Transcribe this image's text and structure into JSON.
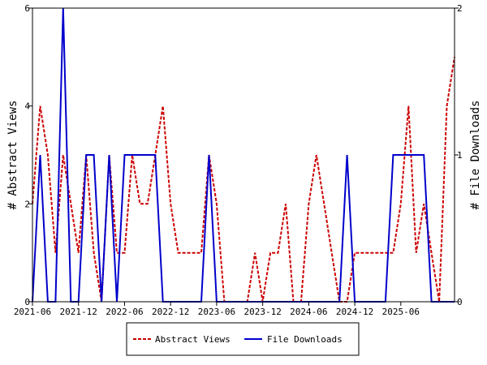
{
  "chart_data": {
    "type": "line",
    "ylabel_left": "# Abstract Views",
    "ylabel_right": "# File Downloads",
    "x_tick_labels": [
      "2021-06",
      "2021-12",
      "2022-06",
      "2022-12",
      "2023-06",
      "2023-12",
      "2024-06",
      "2024-12",
      "2025-06"
    ],
    "ylim_left": [
      0,
      6
    ],
    "ylim_right": [
      0,
      2
    ],
    "y_ticks_left": [
      "0",
      "2",
      "4",
      "6"
    ],
    "y_ticks_right": [
      "0",
      "1",
      "2"
    ],
    "grid": false,
    "legend_position": "bottom",
    "series": [
      {
        "name": "Abstract Views",
        "axis": "left",
        "color": "#cc0000",
        "style": "dashed",
        "points": [
          [
            "2021-06",
            2
          ],
          [
            "2021-07",
            4
          ],
          [
            "2021-08",
            3
          ],
          [
            "2021-09",
            1
          ],
          [
            "2021-10",
            3
          ],
          [
            "2021-11",
            2
          ],
          [
            "2021-12",
            1
          ],
          [
            "2022-01",
            3
          ],
          [
            "2022-02",
            1
          ],
          [
            "2022-03",
            0
          ],
          [
            "2022-04",
            3
          ],
          [
            "2022-05",
            1
          ],
          [
            "2022-06",
            1
          ],
          [
            "2022-07",
            3
          ],
          [
            "2022-08",
            2
          ],
          [
            "2022-09",
            2
          ],
          [
            "2022-10",
            3
          ],
          [
            "2022-11",
            4
          ],
          [
            "2022-12",
            2
          ],
          [
            "2023-01",
            1
          ],
          [
            "2023-02",
            1
          ],
          [
            "2023-03",
            1
          ],
          [
            "2023-04",
            1
          ],
          [
            "2023-05",
            3
          ],
          [
            "2023-06",
            2
          ],
          [
            "2023-07",
            0
          ],
          [
            "2023-08",
            0
          ],
          [
            "2023-09",
            0
          ],
          [
            "2023-10",
            0
          ],
          [
            "2023-11",
            1
          ],
          [
            "2023-12",
            0
          ],
          [
            "2024-01",
            1
          ],
          [
            "2024-02",
            1
          ],
          [
            "2024-03",
            2
          ],
          [
            "2024-04",
            0
          ],
          [
            "2024-05",
            0
          ],
          [
            "2024-06",
            2
          ],
          [
            "2024-07",
            3
          ],
          [
            "2024-08",
            2
          ],
          [
            "2024-09",
            1
          ],
          [
            "2024-10",
            0
          ],
          [
            "2024-11",
            0
          ],
          [
            "2024-12",
            1
          ],
          [
            "2025-01",
            1
          ],
          [
            "2025-02",
            1
          ],
          [
            "2025-03",
            1
          ],
          [
            "2025-04",
            1
          ],
          [
            "2025-05",
            1
          ],
          [
            "2025-06",
            2
          ],
          [
            "2025-07",
            4
          ],
          [
            "2025-08",
            1
          ],
          [
            "2025-09",
            2
          ],
          [
            "2025-10",
            1
          ],
          [
            "2025-11",
            0
          ],
          [
            "2025-12",
            4
          ],
          [
            "2026-01",
            5
          ]
        ]
      },
      {
        "name": "File Downloads",
        "axis": "right",
        "color": "#0000cc",
        "style": "solid",
        "points": [
          [
            "2021-06",
            0
          ],
          [
            "2021-07",
            1
          ],
          [
            "2021-08",
            0
          ],
          [
            "2021-09",
            0
          ],
          [
            "2021-10",
            2
          ],
          [
            "2021-11",
            0
          ],
          [
            "2021-12",
            0
          ],
          [
            "2022-01",
            1
          ],
          [
            "2022-02",
            1
          ],
          [
            "2022-03",
            0
          ],
          [
            "2022-04",
            1
          ],
          [
            "2022-05",
            0
          ],
          [
            "2022-06",
            1
          ],
          [
            "2022-07",
            1
          ],
          [
            "2022-08",
            1
          ],
          [
            "2022-09",
            1
          ],
          [
            "2022-10",
            1
          ],
          [
            "2022-11",
            0
          ],
          [
            "2022-12",
            0
          ],
          [
            "2023-01",
            0
          ],
          [
            "2023-02",
            0
          ],
          [
            "2023-03",
            0
          ],
          [
            "2023-04",
            0
          ],
          [
            "2023-05",
            1
          ],
          [
            "2023-06",
            0
          ],
          [
            "2023-07",
            0
          ],
          [
            "2023-08",
            0
          ],
          [
            "2023-09",
            0
          ],
          [
            "2023-10",
            0
          ],
          [
            "2023-11",
            0
          ],
          [
            "2023-12",
            0
          ],
          [
            "2024-01",
            0
          ],
          [
            "2024-02",
            0
          ],
          [
            "2024-03",
            0
          ],
          [
            "2024-04",
            0
          ],
          [
            "2024-05",
            0
          ],
          [
            "2024-06",
            0
          ],
          [
            "2024-07",
            0
          ],
          [
            "2024-08",
            0
          ],
          [
            "2024-09",
            0
          ],
          [
            "2024-10",
            0
          ],
          [
            "2024-11",
            1
          ],
          [
            "2024-12",
            0
          ],
          [
            "2025-01",
            0
          ],
          [
            "2025-02",
            0
          ],
          [
            "2025-03",
            0
          ],
          [
            "2025-04",
            0
          ],
          [
            "2025-05",
            1
          ],
          [
            "2025-06",
            1
          ],
          [
            "2025-07",
            1
          ],
          [
            "2025-08",
            1
          ],
          [
            "2025-09",
            1
          ],
          [
            "2025-10",
            0
          ],
          [
            "2025-11",
            0
          ],
          [
            "2025-12",
            0
          ],
          [
            "2026-01",
            0
          ]
        ]
      }
    ]
  }
}
